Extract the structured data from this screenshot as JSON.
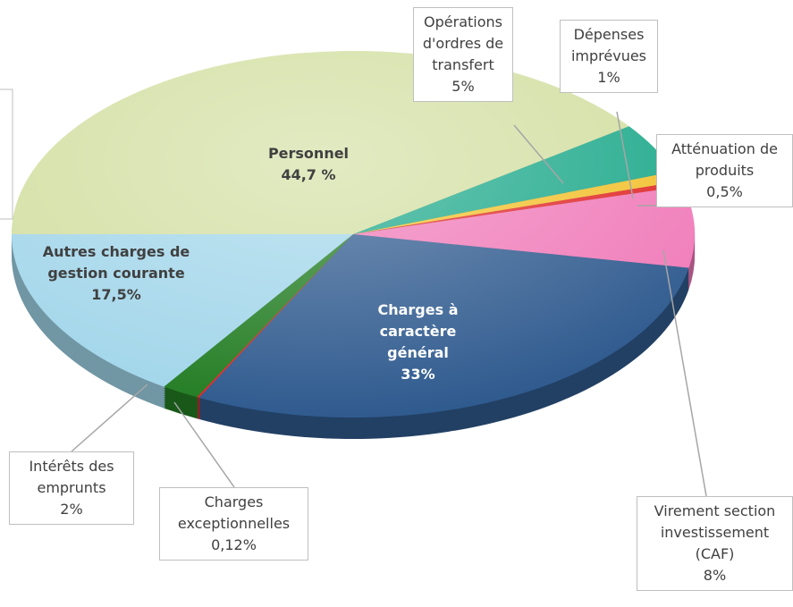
{
  "chart_data": {
    "type": "pie",
    "categories": [
      "Personnel",
      "Opérations d'ordres de transfert",
      "Dépenses imprévues",
      "Atténuation de produits",
      "Virement section investissement (CAF)",
      "Charges à caractère général",
      "Charges exceptionnelles",
      "Intérêts des emprunts",
      "Autres charges de gestion courante"
    ],
    "values": [
      44.7,
      5,
      1,
      0.5,
      8,
      33,
      0.12,
      2,
      17.5
    ],
    "value_labels": [
      "44,7 %",
      "5%",
      "1%",
      "0,5%",
      "8%",
      "33%",
      "0,12%",
      "2%",
      "17,5%"
    ],
    "colors": [
      "#d3dfa2",
      "#1ea98b",
      "#f2c12e",
      "#e02828",
      "#f07bb9",
      "#305b8f",
      "#e02828",
      "#237d23",
      "#a2d6ea"
    ]
  }
}
